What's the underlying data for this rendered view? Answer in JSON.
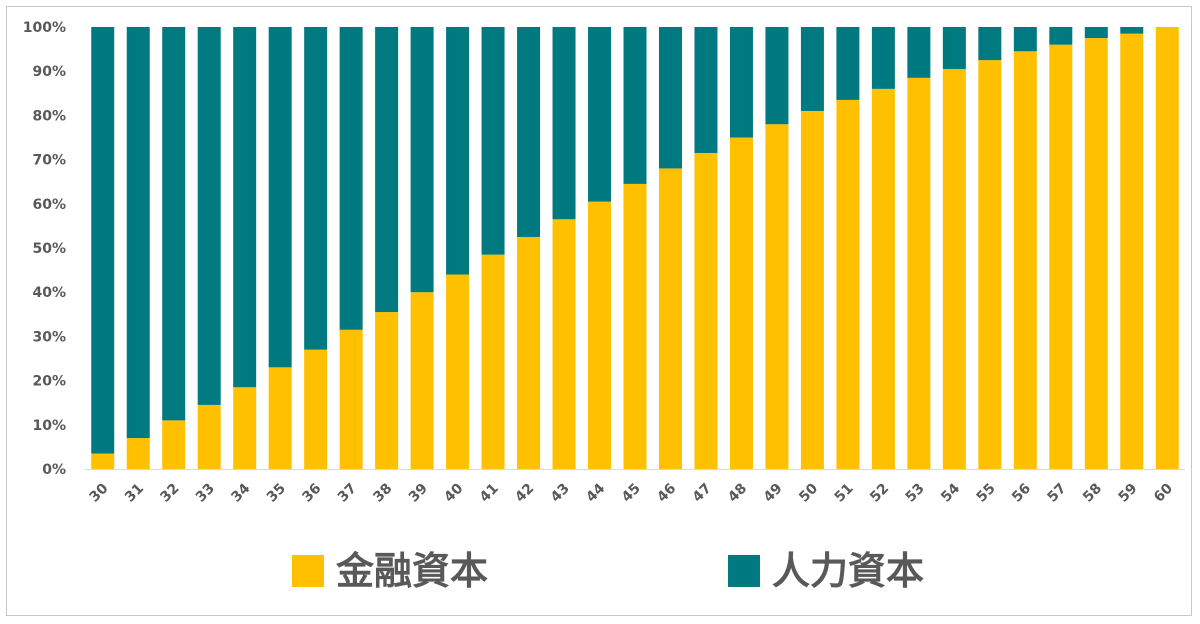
{
  "chart_data": {
    "type": "bar",
    "stacked": true,
    "categories": [
      "30",
      "31",
      "32",
      "33",
      "34",
      "35",
      "36",
      "37",
      "38",
      "39",
      "40",
      "41",
      "42",
      "43",
      "44",
      "45",
      "46",
      "47",
      "48",
      "49",
      "50",
      "51",
      "52",
      "53",
      "54",
      "55",
      "56",
      "57",
      "58",
      "59",
      "60"
    ],
    "series": [
      {
        "name": "金融資本",
        "color": "#FFC000",
        "values": [
          3.5,
          7,
          11,
          14.5,
          18.5,
          23,
          27,
          31.5,
          35.5,
          40,
          44,
          48.5,
          52.5,
          56.5,
          60.5,
          64.5,
          68,
          71.5,
          75,
          78,
          81,
          83.5,
          86,
          88.5,
          90.5,
          92.5,
          94.5,
          96,
          97.5,
          98.5,
          100
        ]
      },
      {
        "name": "人力資本",
        "color": "#007A80",
        "values": [
          96.5,
          93,
          89,
          85.5,
          81.5,
          77,
          73,
          68.5,
          64.5,
          60,
          56,
          51.5,
          47.5,
          43.5,
          39.5,
          35.5,
          32,
          28.5,
          25,
          22,
          19,
          16.5,
          14,
          11.5,
          9.5,
          7.5,
          5.5,
          4,
          2.5,
          1.5,
          0
        ]
      }
    ],
    "yticks": [
      "0%",
      "10%",
      "20%",
      "30%",
      "40%",
      "50%",
      "60%",
      "70%",
      "80%",
      "90%",
      "100%"
    ],
    "ylim": [
      0,
      100
    ],
    "grid": false,
    "legend": "bottom"
  }
}
